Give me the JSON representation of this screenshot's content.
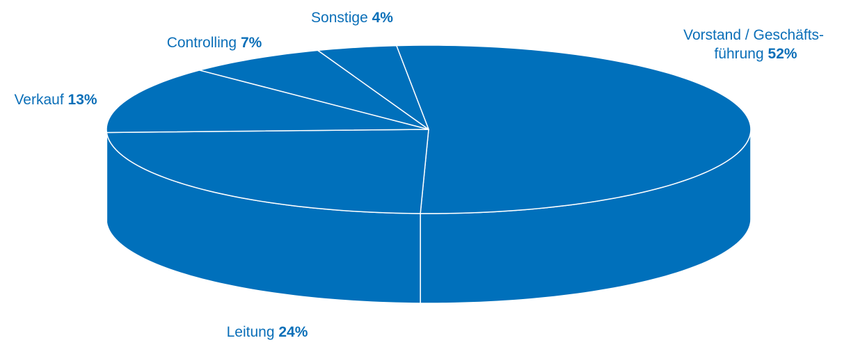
{
  "chart_data": {
    "type": "pie",
    "title": "",
    "slices": [
      {
        "label": "Vorstand / Geschäfts-führung",
        "label_lines": [
          "Vorstand / Geschäfts-",
          "führung"
        ],
        "value": 52,
        "value_text": "52%"
      },
      {
        "label": "Leitung",
        "label_lines": [
          "Leitung"
        ],
        "value": 24,
        "value_text": "24%"
      },
      {
        "label": "Verkauf",
        "label_lines": [
          "Verkauf"
        ],
        "value": 13,
        "value_text": "13%"
      },
      {
        "label": "Controlling",
        "label_lines": [
          "Controlling"
        ],
        "value": 7,
        "value_text": "7%"
      },
      {
        "label": "Sonstige",
        "label_lines": [
          "Sonstige"
        ],
        "value": 4,
        "value_text": "4%"
      }
    ],
    "style": "3d",
    "colors": {
      "fill": "#0070bb",
      "edge": "#ffffff",
      "label_text": "#0b6fb8"
    }
  }
}
